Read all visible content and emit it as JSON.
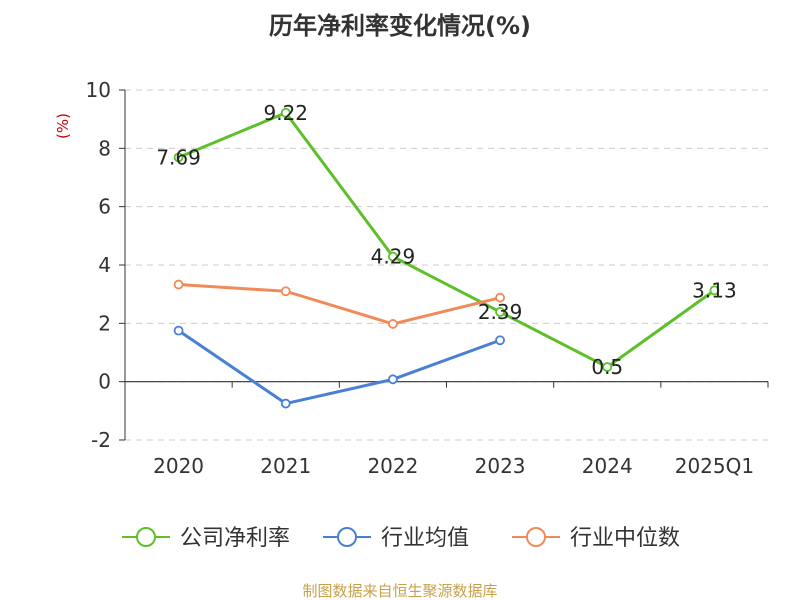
{
  "chart_data": {
    "type": "line",
    "title": "历年净利率变化情况(%)",
    "ylabel": "(%)",
    "xlabel": "",
    "categories": [
      "2020",
      "2021",
      "2022",
      "2023",
      "2024",
      "2025Q1"
    ],
    "ylim": [
      -2,
      10
    ],
    "yticks": [
      -2,
      0,
      2,
      4,
      6,
      8,
      10
    ],
    "grid": true,
    "legend_position": "bottom",
    "series": [
      {
        "name": "公司净利率",
        "color": "#5dbf2a",
        "values": [
          7.69,
          9.22,
          4.29,
          2.39,
          0.5,
          3.13
        ],
        "labels": [
          "7.69",
          "9.22",
          "4.29",
          "2.39",
          "0.5",
          "3.13"
        ]
      },
      {
        "name": "行业均值",
        "color": "#4a7fd6",
        "values": [
          1.75,
          -0.75,
          0.08,
          1.42,
          null,
          null
        ]
      },
      {
        "name": "行业中位数",
        "color": "#f08a5a",
        "values": [
          3.33,
          3.1,
          1.98,
          2.88,
          null,
          null
        ]
      }
    ]
  },
  "footer": {
    "source": "制图数据来自恒生聚源数据库"
  }
}
